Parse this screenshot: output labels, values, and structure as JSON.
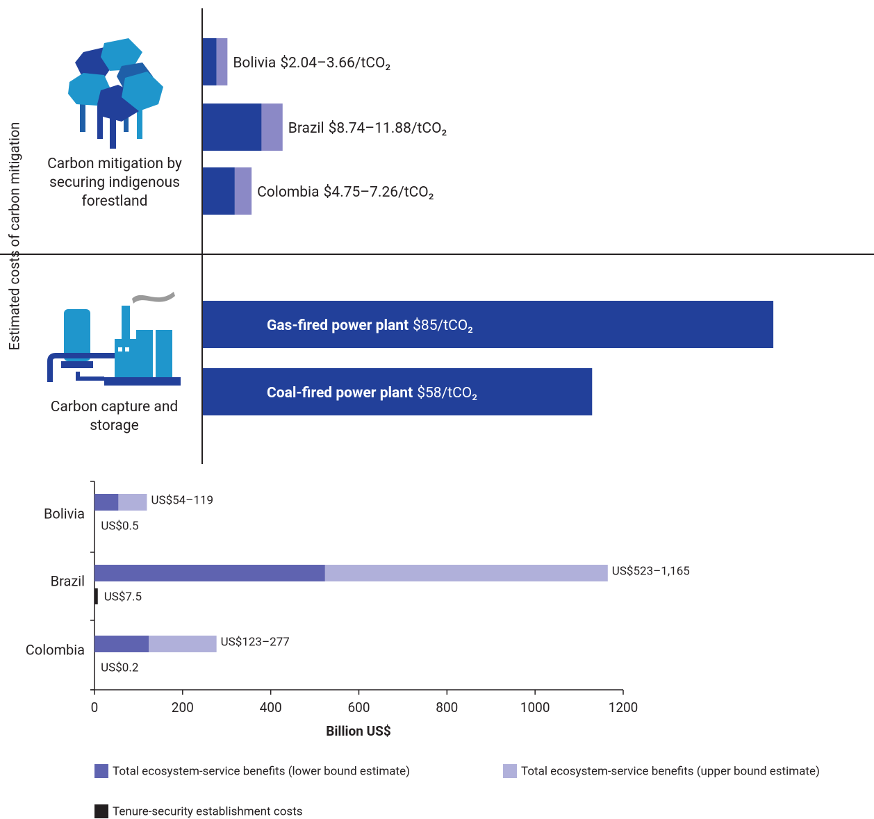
{
  "chart_data": [
    {
      "type": "range-bar",
      "ylabel": "Estimated costs of carbon mitigation",
      "xlim": [
        0,
        100
      ],
      "colors": {
        "low": "#22409a",
        "high": "#8b89c6",
        "label": "#ffffff"
      },
      "groups": [
        {
          "label": "Carbon mitigation by securing indigenous forestland",
          "categories": [
            "Bolivia",
            "Brazil",
            "Colombia"
          ],
          "low": [
            2.04,
            8.74,
            4.75
          ],
          "high": [
            3.66,
            11.88,
            7.26
          ],
          "value_labels": [
            "$2.04–3.66/tCO₂",
            "$8.74–11.88/tCO₂",
            "$4.75–7.26/tCO₂"
          ]
        },
        {
          "label": "Carbon capture and storage",
          "categories": [
            "Gas-fired power plant",
            "Coal-fired power plant"
          ],
          "values": [
            85,
            58
          ],
          "value_labels": [
            "$85/tCO₂",
            "$58/tCO₂"
          ]
        }
      ]
    },
    {
      "type": "bar",
      "orientation": "horizontal",
      "categories": [
        "Bolivia",
        "Brazil",
        "Colombia"
      ],
      "xlabel": "Billion US$",
      "xlim": [
        0,
        1200
      ],
      "xticks": [
        0,
        200,
        400,
        600,
        800,
        1000,
        1200
      ],
      "series": [
        {
          "name": "Total ecosystem-service benefits (lower bound estimate)",
          "color": "#5f63b0",
          "values": [
            54,
            523,
            123
          ]
        },
        {
          "name": "Total ecosystem-service benefits (upper bound estimate)",
          "color": "#b0b0da",
          "values": [
            119,
            1165,
            277
          ]
        },
        {
          "name": "Tenure-security establishment costs",
          "color": "#231f20",
          "values": [
            0.5,
            7.5,
            0.2
          ],
          "value_labels": [
            "US$0.5",
            "US$7.5",
            "US$0.2"
          ]
        }
      ],
      "range_labels": [
        "US$54–119",
        "US$523–1,165",
        "US$123–277"
      ]
    }
  ]
}
